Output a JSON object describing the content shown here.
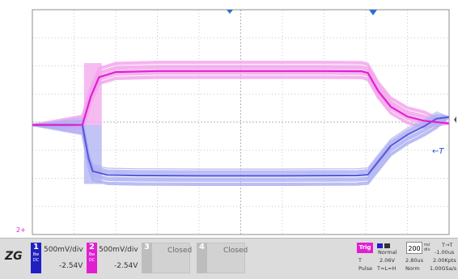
{
  "chart_data": {
    "type": "line",
    "title": "",
    "xlabel": "",
    "ylabel": "",
    "grid": true,
    "grid_divisions": {
      "x": 10,
      "y": 8
    },
    "series": [
      {
        "channel": 1,
        "color": "#5a5ae0",
        "x": [
          0.0,
          1.2,
          1.35,
          1.45,
          1.8,
          2.5,
          4.0,
          6.0,
          7.8,
          8.05,
          8.3,
          8.6,
          9.0,
          9.4,
          9.7,
          10.0
        ],
        "y": [
          -0.1,
          -0.1,
          -1.3,
          -1.75,
          -1.88,
          -1.9,
          -1.91,
          -1.91,
          -1.9,
          -1.87,
          -1.4,
          -0.85,
          -0.45,
          -0.15,
          0.12,
          0.18
        ]
      },
      {
        "channel": 2,
        "color": "#e020d0",
        "x": [
          0.0,
          1.2,
          1.4,
          1.6,
          2.0,
          3.0,
          5.0,
          7.0,
          7.9,
          8.05,
          8.3,
          8.6,
          9.0,
          9.4,
          10.0
        ],
        "y": [
          -0.1,
          -0.1,
          0.9,
          1.6,
          1.78,
          1.82,
          1.82,
          1.82,
          1.81,
          1.75,
          1.1,
          0.55,
          0.2,
          0.05,
          -0.05
        ]
      }
    ]
  },
  "markers": {
    "ground_label": "2+",
    "trigger_label": "←T"
  },
  "status": {
    "logo": "ZG",
    "ch1": {
      "num": "1",
      "sub": "Bw DC",
      "scale": "500mV/div",
      "offset": "-2.54V",
      "color": "#2020c0"
    },
    "ch2": {
      "num": "2",
      "sub": "Bw DC",
      "scale": "500mV/div",
      "offset": "-2.54V",
      "color": "#e020d0"
    },
    "ch3": {
      "num": "3",
      "state": "Closed",
      "color": "#bdbdbd"
    },
    "ch4": {
      "num": "4",
      "state": "Closed",
      "color": "#bdbdbd"
    },
    "trigger": {
      "label": "Trig",
      "mode": "Normal",
      "level": "2.06V",
      "type": "Pulse",
      "type_value": "T=L=H",
      "time_label": "T",
      "time_value": "2.80us",
      "acq": "Norm"
    },
    "timebase": {
      "value": "200",
      "unit": "ns/ div",
      "delay_label": "T→T",
      "delay": "-1.00us",
      "pts": "2.00Kpts",
      "rate": "1.00GSa/s"
    }
  }
}
